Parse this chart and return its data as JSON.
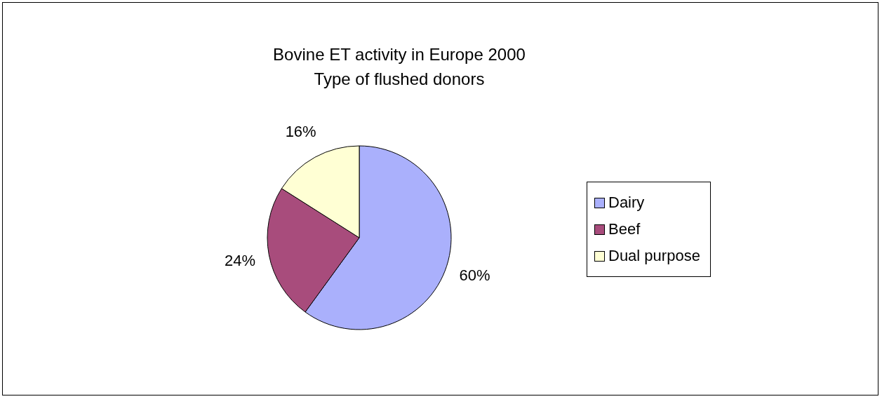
{
  "chart_data": {
    "type": "pie",
    "title": "Bovine ET activity in Europe 2000\nType of flushed donors",
    "categories": [
      "Dairy",
      "Beef",
      "Dual purpose"
    ],
    "values": [
      60,
      24,
      16
    ],
    "value_labels": [
      "60%",
      "24%",
      "16%"
    ],
    "colors": [
      "#aab0fc",
      "#a84c7c",
      "#ffffd4"
    ],
    "legend": "right"
  }
}
